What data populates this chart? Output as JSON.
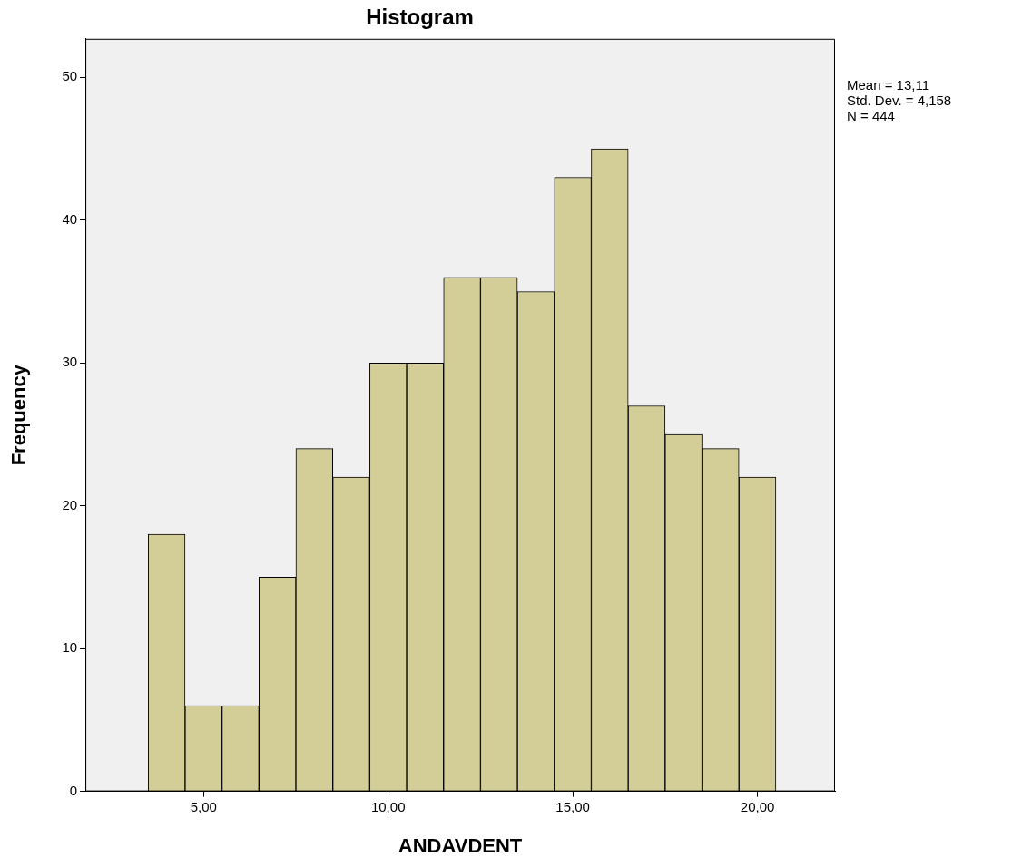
{
  "chart_data": {
    "type": "histogram",
    "title": "Histogram",
    "xlabel": "ANDAVDENT",
    "ylabel": "Frequency",
    "bins": [
      3.5,
      4.5,
      5.5,
      6.5,
      7.5,
      8.5,
      9.5,
      10.5,
      11.5,
      12.5,
      13.5,
      14.5,
      15.5,
      16.5,
      17.5,
      18.5,
      19.5,
      20.5
    ],
    "values": [
      18,
      6,
      6,
      15,
      24,
      22,
      30,
      30,
      36,
      36,
      35,
      43,
      45,
      27,
      25,
      24,
      22
    ],
    "color": "#d3ce97",
    "xlim": [
      1.8,
      22.1
    ],
    "xticks": [
      {
        "value": 5,
        "label": "5,00"
      },
      {
        "value": 10,
        "label": "10,00"
      },
      {
        "value": 15,
        "label": "15,00"
      },
      {
        "value": 20,
        "label": "20,00"
      }
    ],
    "ylim": [
      0,
      52.7
    ],
    "yticks": [
      0,
      10,
      20,
      30,
      40,
      50
    ],
    "grid": false,
    "legend": false,
    "annotations": [
      "Mean = 13,11",
      "Std. Dev. = 4,158",
      "N = 444"
    ]
  }
}
